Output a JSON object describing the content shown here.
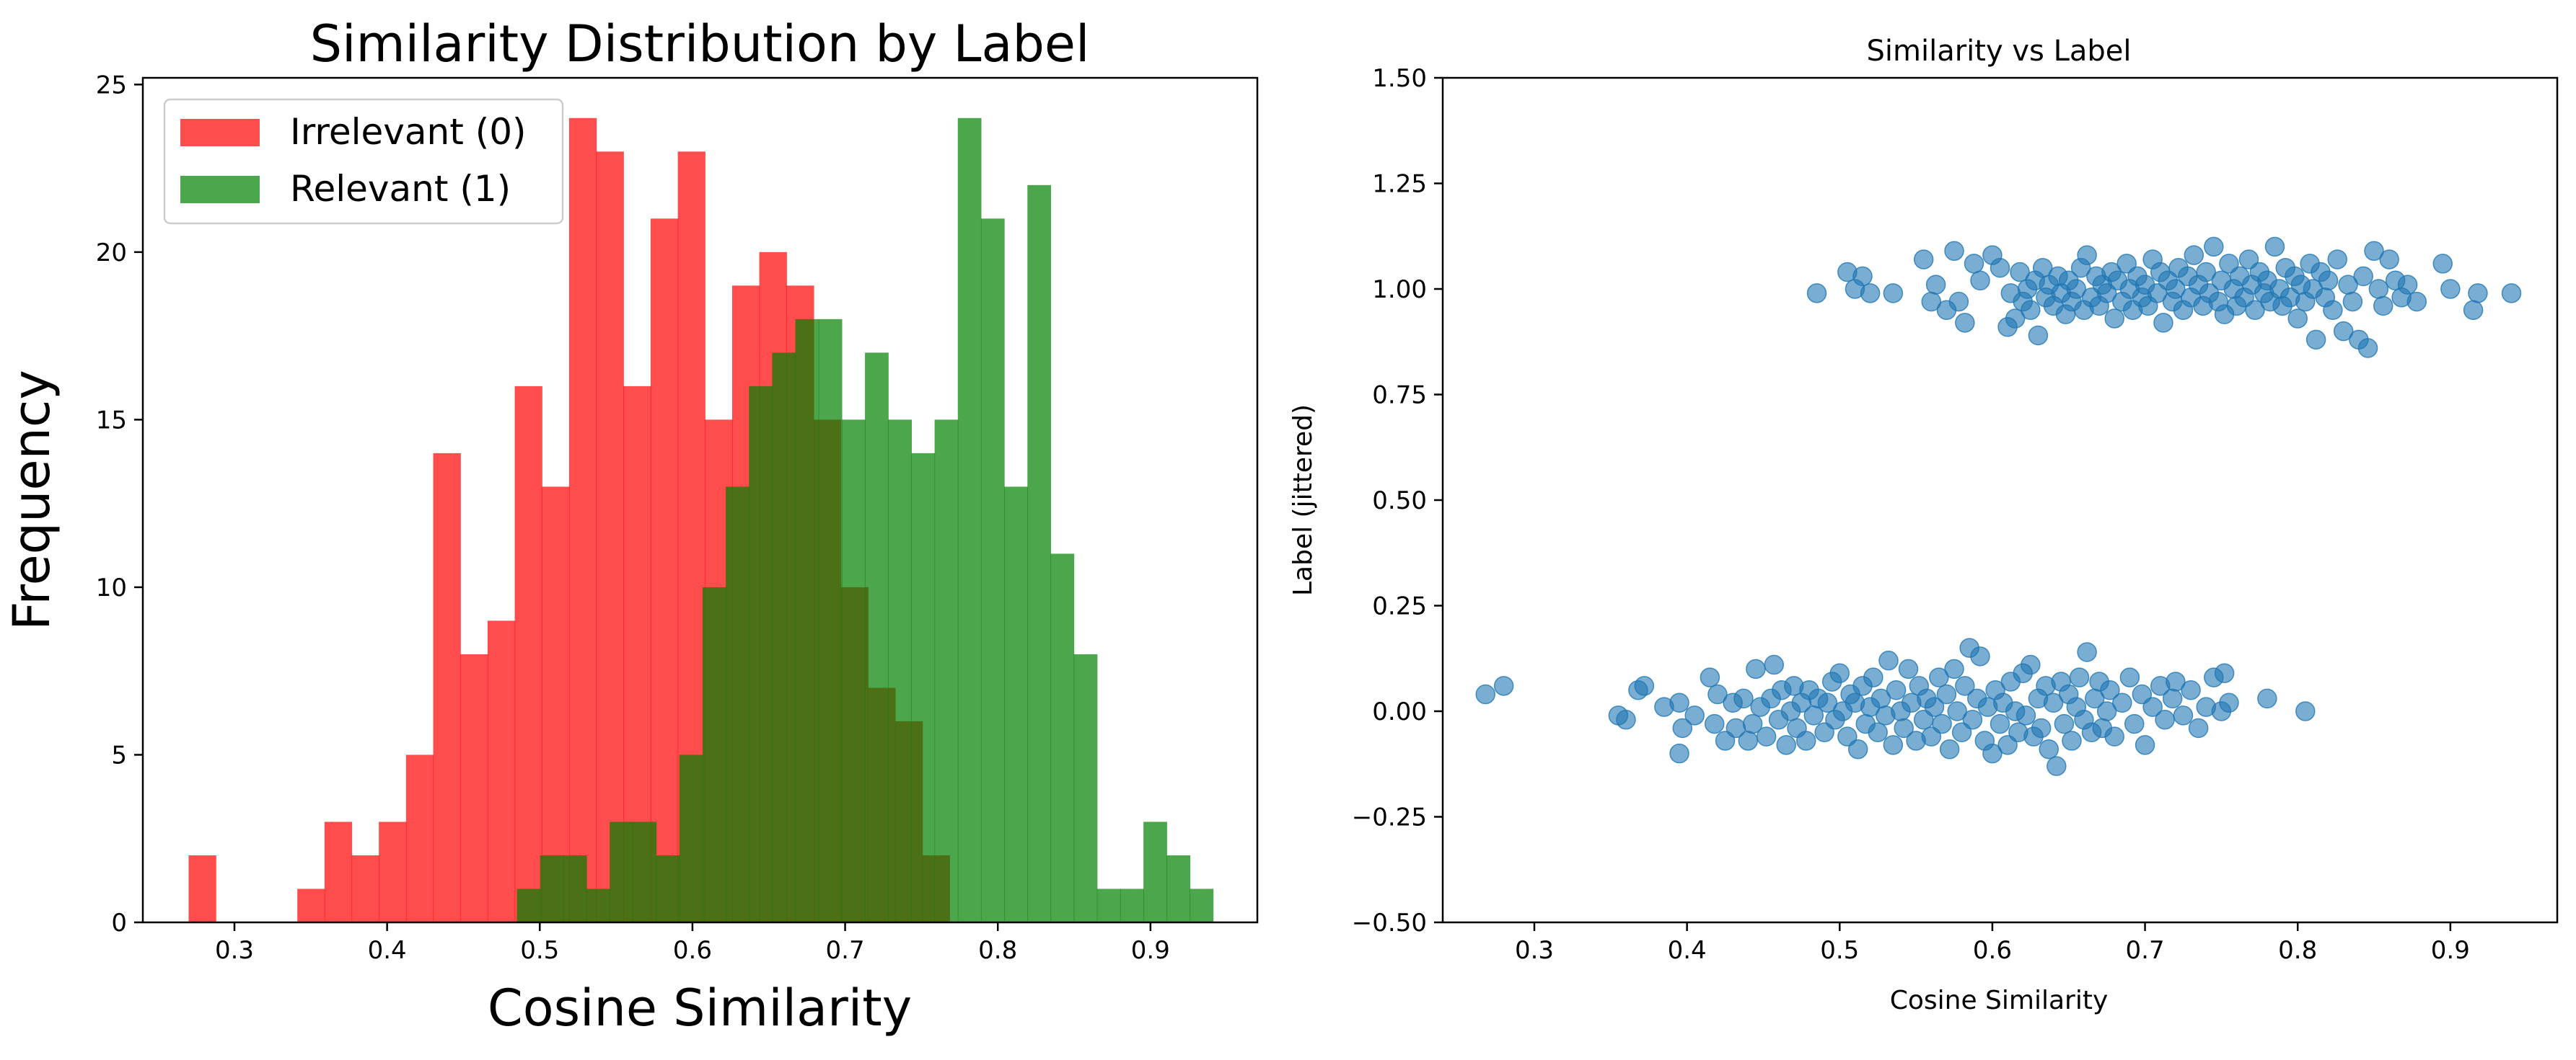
{
  "colors": {
    "irrelevant": "#ff0000",
    "relevant": "#008000",
    "scatter": "#1f77b4"
  },
  "chart_data": [
    {
      "type": "bar",
      "subtype": "histogram",
      "title": "Similarity Distribution by Label",
      "xlabel": "Cosine Similarity",
      "ylabel": "Frequency",
      "xlim": [
        0.24,
        0.97
      ],
      "ylim": [
        0,
        25.2
      ],
      "xticks": [
        "0.3",
        "0.4",
        "0.5",
        "0.6",
        "0.7",
        "0.8",
        "0.9"
      ],
      "xtick_values": [
        0.3,
        0.4,
        0.5,
        0.6,
        0.7,
        0.8,
        0.9
      ],
      "yticks": [
        "0",
        "5",
        "10",
        "15",
        "20",
        "25"
      ],
      "ytick_values": [
        0,
        5,
        10,
        15,
        20,
        25
      ],
      "legend_position": "top-left",
      "series": [
        {
          "name": "Irrelevant (0)",
          "color": "#ff0000",
          "alpha": 0.7,
          "bin_start": 0.27,
          "bin_width": 0.0178,
          "values": [
            2,
            0,
            0,
            0,
            1,
            3,
            2,
            3,
            5,
            14,
            8,
            9,
            16,
            13,
            24,
            23,
            16,
            21,
            23,
            15,
            19,
            20,
            19,
            15,
            10,
            7,
            6,
            2
          ]
        },
        {
          "name": "Relevant (1)",
          "color": "#008000",
          "alpha": 0.7,
          "bin_start": 0.485,
          "bin_width": 0.0152,
          "values": [
            1,
            2,
            2,
            1,
            3,
            3,
            2,
            5,
            10,
            13,
            16,
            17,
            18,
            18,
            15,
            17,
            15,
            14,
            15,
            24,
            21,
            13,
            22,
            11,
            8,
            1,
            1,
            3,
            2,
            1
          ]
        }
      ]
    },
    {
      "type": "scatter",
      "title": "Similarity vs Label",
      "xlabel": "Cosine Similarity",
      "ylabel": "Label (jittered)",
      "xlim": [
        0.24,
        0.97
      ],
      "ylim": [
        -0.5,
        1.5
      ],
      "xticks": [
        "0.3",
        "0.4",
        "0.5",
        "0.6",
        "0.7",
        "0.8",
        "0.9"
      ],
      "xtick_values": [
        0.3,
        0.4,
        0.5,
        0.6,
        0.7,
        0.8,
        0.9
      ],
      "yticks": [
        "−0.50",
        "−0.25",
        "0.00",
        "0.25",
        "0.50",
        "0.75",
        "1.00",
        "1.25",
        "1.50"
      ],
      "ytick_values": [
        -0.5,
        -0.25,
        0,
        0.25,
        0.5,
        0.75,
        1.0,
        1.25,
        1.5
      ],
      "color": "#1f77b4",
      "alpha": 0.6,
      "points": [
        [
          0.268,
          0.04
        ],
        [
          0.28,
          0.06
        ],
        [
          0.355,
          -0.01
        ],
        [
          0.36,
          -0.02
        ],
        [
          0.368,
          0.05
        ],
        [
          0.372,
          0.06
        ],
        [
          0.385,
          0.01
        ],
        [
          0.395,
          0.02
        ],
        [
          0.395,
          -0.1
        ],
        [
          0.397,
          -0.04
        ],
        [
          0.405,
          -0.01
        ],
        [
          0.415,
          0.08
        ],
        [
          0.418,
          -0.03
        ],
        [
          0.42,
          0.04
        ],
        [
          0.425,
          -0.07
        ],
        [
          0.43,
          0.02
        ],
        [
          0.432,
          -0.04
        ],
        [
          0.437,
          0.03
        ],
        [
          0.44,
          -0.07
        ],
        [
          0.443,
          -0.03
        ],
        [
          0.445,
          0.1
        ],
        [
          0.448,
          0.01
        ],
        [
          0.452,
          -0.06
        ],
        [
          0.455,
          0.03
        ],
        [
          0.457,
          0.11
        ],
        [
          0.46,
          -0.02
        ],
        [
          0.462,
          0.05
        ],
        [
          0.465,
          -0.08
        ],
        [
          0.468,
          0.0
        ],
        [
          0.47,
          0.06
        ],
        [
          0.472,
          -0.04
        ],
        [
          0.475,
          0.02
        ],
        [
          0.478,
          -0.07
        ],
        [
          0.48,
          0.05
        ],
        [
          0.483,
          -0.01
        ],
        [
          0.486,
          0.03
        ],
        [
          0.49,
          -0.05
        ],
        [
          0.492,
          0.02
        ],
        [
          0.495,
          0.07
        ],
        [
          0.497,
          -0.02
        ],
        [
          0.5,
          0.09
        ],
        [
          0.502,
          0.0
        ],
        [
          0.505,
          -0.06
        ],
        [
          0.507,
          0.04
        ],
        [
          0.51,
          0.02
        ],
        [
          0.512,
          -0.09
        ],
        [
          0.515,
          0.06
        ],
        [
          0.517,
          -0.03
        ],
        [
          0.52,
          0.01
        ],
        [
          0.522,
          0.08
        ],
        [
          0.525,
          -0.05
        ],
        [
          0.527,
          0.03
        ],
        [
          0.53,
          -0.01
        ],
        [
          0.532,
          0.12
        ],
        [
          0.535,
          -0.08
        ],
        [
          0.537,
          0.05
        ],
        [
          0.54,
          0.0
        ],
        [
          0.542,
          -0.04
        ],
        [
          0.545,
          0.1
        ],
        [
          0.547,
          0.02
        ],
        [
          0.55,
          -0.07
        ],
        [
          0.552,
          0.06
        ],
        [
          0.555,
          -0.02
        ],
        [
          0.557,
          0.03
        ],
        [
          0.56,
          -0.06
        ],
        [
          0.562,
          0.01
        ],
        [
          0.565,
          0.08
        ],
        [
          0.567,
          -0.03
        ],
        [
          0.57,
          0.04
        ],
        [
          0.572,
          -0.09
        ],
        [
          0.575,
          0.1
        ],
        [
          0.577,
          0.0
        ],
        [
          0.58,
          -0.05
        ],
        [
          0.582,
          0.06
        ],
        [
          0.585,
          0.15
        ],
        [
          0.587,
          -0.02
        ],
        [
          0.59,
          0.03
        ],
        [
          0.592,
          0.13
        ],
        [
          0.595,
          -0.07
        ],
        [
          0.597,
          0.01
        ],
        [
          0.6,
          -0.1
        ],
        [
          0.602,
          0.05
        ],
        [
          0.605,
          -0.03
        ],
        [
          0.607,
          0.02
        ],
        [
          0.61,
          -0.08
        ],
        [
          0.612,
          0.07
        ],
        [
          0.615,
          0.0
        ],
        [
          0.617,
          -0.05
        ],
        [
          0.62,
          0.09
        ],
        [
          0.622,
          -0.01
        ],
        [
          0.625,
          0.11
        ],
        [
          0.627,
          -0.06
        ],
        [
          0.63,
          0.03
        ],
        [
          0.632,
          -0.04
        ],
        [
          0.635,
          0.06
        ],
        [
          0.637,
          -0.09
        ],
        [
          0.64,
          0.02
        ],
        [
          0.642,
          -0.13
        ],
        [
          0.645,
          0.07
        ],
        [
          0.647,
          -0.03
        ],
        [
          0.65,
          0.04
        ],
        [
          0.652,
          -0.07
        ],
        [
          0.655,
          0.01
        ],
        [
          0.657,
          0.08
        ],
        [
          0.66,
          -0.02
        ],
        [
          0.662,
          0.14
        ],
        [
          0.665,
          -0.05
        ],
        [
          0.667,
          0.03
        ],
        [
          0.67,
          0.07
        ],
        [
          0.672,
          -0.04
        ],
        [
          0.675,
          0.0
        ],
        [
          0.677,
          0.05
        ],
        [
          0.68,
          -0.06
        ],
        [
          0.685,
          0.02
        ],
        [
          0.69,
          0.08
        ],
        [
          0.693,
          -0.03
        ],
        [
          0.698,
          0.04
        ],
        [
          0.7,
          -0.08
        ],
        [
          0.705,
          0.01
        ],
        [
          0.71,
          0.06
        ],
        [
          0.713,
          -0.02
        ],
        [
          0.718,
          0.03
        ],
        [
          0.72,
          0.07
        ],
        [
          0.725,
          -0.01
        ],
        [
          0.73,
          0.05
        ],
        [
          0.735,
          -0.04
        ],
        [
          0.74,
          0.01
        ],
        [
          0.745,
          0.08
        ],
        [
          0.75,
          0.0
        ],
        [
          0.752,
          0.09
        ],
        [
          0.755,
          0.02
        ],
        [
          0.78,
          0.03
        ],
        [
          0.805,
          0.0
        ],
        [
          0.485,
          0.99
        ],
        [
          0.505,
          1.04
        ],
        [
          0.51,
          1.0
        ],
        [
          0.515,
          1.03
        ],
        [
          0.52,
          0.99
        ],
        [
          0.535,
          0.99
        ],
        [
          0.555,
          1.07
        ],
        [
          0.56,
          0.97
        ],
        [
          0.563,
          1.01
        ],
        [
          0.57,
          0.95
        ],
        [
          0.575,
          1.09
        ],
        [
          0.578,
          0.97
        ],
        [
          0.582,
          0.92
        ],
        [
          0.588,
          1.06
        ],
        [
          0.592,
          1.02
        ],
        [
          0.6,
          1.08
        ],
        [
          0.605,
          1.05
        ],
        [
          0.61,
          0.91
        ],
        [
          0.612,
          0.99
        ],
        [
          0.615,
          0.93
        ],
        [
          0.618,
          1.04
        ],
        [
          0.62,
          0.97
        ],
        [
          0.623,
          1.0
        ],
        [
          0.625,
          0.95
        ],
        [
          0.628,
          1.02
        ],
        [
          0.63,
          0.89
        ],
        [
          0.633,
          1.05
        ],
        [
          0.635,
          0.98
        ],
        [
          0.637,
          1.01
        ],
        [
          0.64,
          0.96
        ],
        [
          0.643,
          1.03
        ],
        [
          0.645,
          0.99
        ],
        [
          0.648,
          0.94
        ],
        [
          0.65,
          1.02
        ],
        [
          0.652,
          0.97
        ],
        [
          0.655,
          1.0
        ],
        [
          0.658,
          1.05
        ],
        [
          0.66,
          0.95
        ],
        [
          0.662,
          1.08
        ],
        [
          0.665,
          0.98
        ],
        [
          0.668,
          1.03
        ],
        [
          0.67,
          0.96
        ],
        [
          0.672,
          1.01
        ],
        [
          0.675,
          0.99
        ],
        [
          0.678,
          1.04
        ],
        [
          0.68,
          0.93
        ],
        [
          0.682,
          1.02
        ],
        [
          0.685,
          0.97
        ],
        [
          0.688,
          1.06
        ],
        [
          0.69,
          1.0
        ],
        [
          0.692,
          0.95
        ],
        [
          0.695,
          1.03
        ],
        [
          0.698,
          0.98
        ],
        [
          0.7,
          1.01
        ],
        [
          0.702,
          0.96
        ],
        [
          0.705,
          1.07
        ],
        [
          0.708,
          0.99
        ],
        [
          0.71,
          1.04
        ],
        [
          0.712,
          0.92
        ],
        [
          0.715,
          1.02
        ],
        [
          0.718,
          0.97
        ],
        [
          0.72,
          1.0
        ],
        [
          0.722,
          1.05
        ],
        [
          0.725,
          0.95
        ],
        [
          0.728,
          1.03
        ],
        [
          0.73,
          0.98
        ],
        [
          0.732,
          1.08
        ],
        [
          0.735,
          1.01
        ],
        [
          0.738,
          0.96
        ],
        [
          0.74,
          1.04
        ],
        [
          0.742,
          0.99
        ],
        [
          0.745,
          1.1
        ],
        [
          0.748,
          0.97
        ],
        [
          0.75,
          1.02
        ],
        [
          0.752,
          0.94
        ],
        [
          0.755,
          1.06
        ],
        [
          0.758,
          1.0
        ],
        [
          0.76,
          0.96
        ],
        [
          0.762,
          1.03
        ],
        [
          0.765,
          0.98
        ],
        [
          0.768,
          1.07
        ],
        [
          0.77,
          1.01
        ],
        [
          0.772,
          0.95
        ],
        [
          0.775,
          1.04
        ],
        [
          0.778,
          0.99
        ],
        [
          0.78,
          1.02
        ],
        [
          0.782,
          0.97
        ],
        [
          0.785,
          1.1
        ],
        [
          0.788,
          1.0
        ],
        [
          0.79,
          0.96
        ],
        [
          0.792,
          1.05
        ],
        [
          0.795,
          0.98
        ],
        [
          0.798,
          1.03
        ],
        [
          0.8,
          0.93
        ],
        [
          0.802,
          1.01
        ],
        [
          0.805,
          0.97
        ],
        [
          0.808,
          1.06
        ],
        [
          0.81,
          1.0
        ],
        [
          0.812,
          0.88
        ],
        [
          0.815,
          1.04
        ],
        [
          0.818,
          0.98
        ],
        [
          0.82,
          1.02
        ],
        [
          0.823,
          0.95
        ],
        [
          0.826,
          1.07
        ],
        [
          0.83,
          0.9
        ],
        [
          0.833,
          1.01
        ],
        [
          0.836,
          0.97
        ],
        [
          0.84,
          0.88
        ],
        [
          0.843,
          1.03
        ],
        [
          0.846,
          0.86
        ],
        [
          0.85,
          1.09
        ],
        [
          0.853,
          1.0
        ],
        [
          0.856,
          0.96
        ],
        [
          0.86,
          1.07
        ],
        [
          0.864,
          1.02
        ],
        [
          0.868,
          0.98
        ],
        [
          0.872,
          1.01
        ],
        [
          0.878,
          0.97
        ],
        [
          0.895,
          1.06
        ],
        [
          0.9,
          1.0
        ],
        [
          0.915,
          0.95
        ],
        [
          0.918,
          0.99
        ],
        [
          0.94,
          0.99
        ]
      ]
    }
  ]
}
